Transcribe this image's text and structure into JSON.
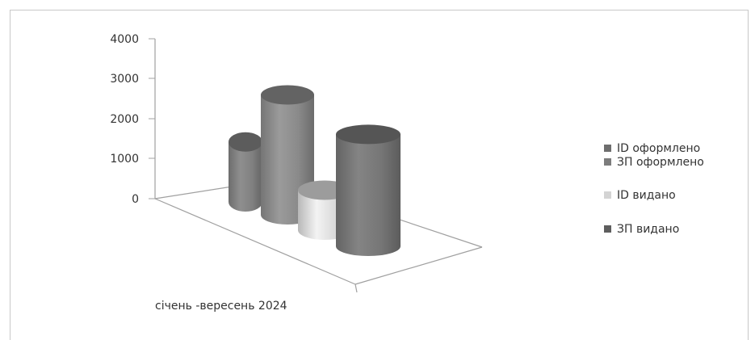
{
  "chart_data": {
    "type": "bar",
    "style": "3d-cylinder",
    "categories": [
      "січень -вересень 2024"
    ],
    "series": [
      {
        "name": "ID оформлено",
        "values": [
          1500
        ],
        "color": "#808080"
      },
      {
        "name": "ЗП оформлено",
        "values": [
          3000
        ],
        "color": "#8a8a8a"
      },
      {
        "name": "ID видано",
        "values": [
          1000
        ],
        "color": "#d9d9d9"
      },
      {
        "name": "ЗП видано",
        "values": [
          2800
        ],
        "color": "#767676"
      }
    ],
    "yticks": [
      "4000",
      "3000",
      "2000",
      "1000",
      "0"
    ],
    "ylim": [
      0,
      4000
    ],
    "grid": false,
    "legend_position": "right"
  }
}
